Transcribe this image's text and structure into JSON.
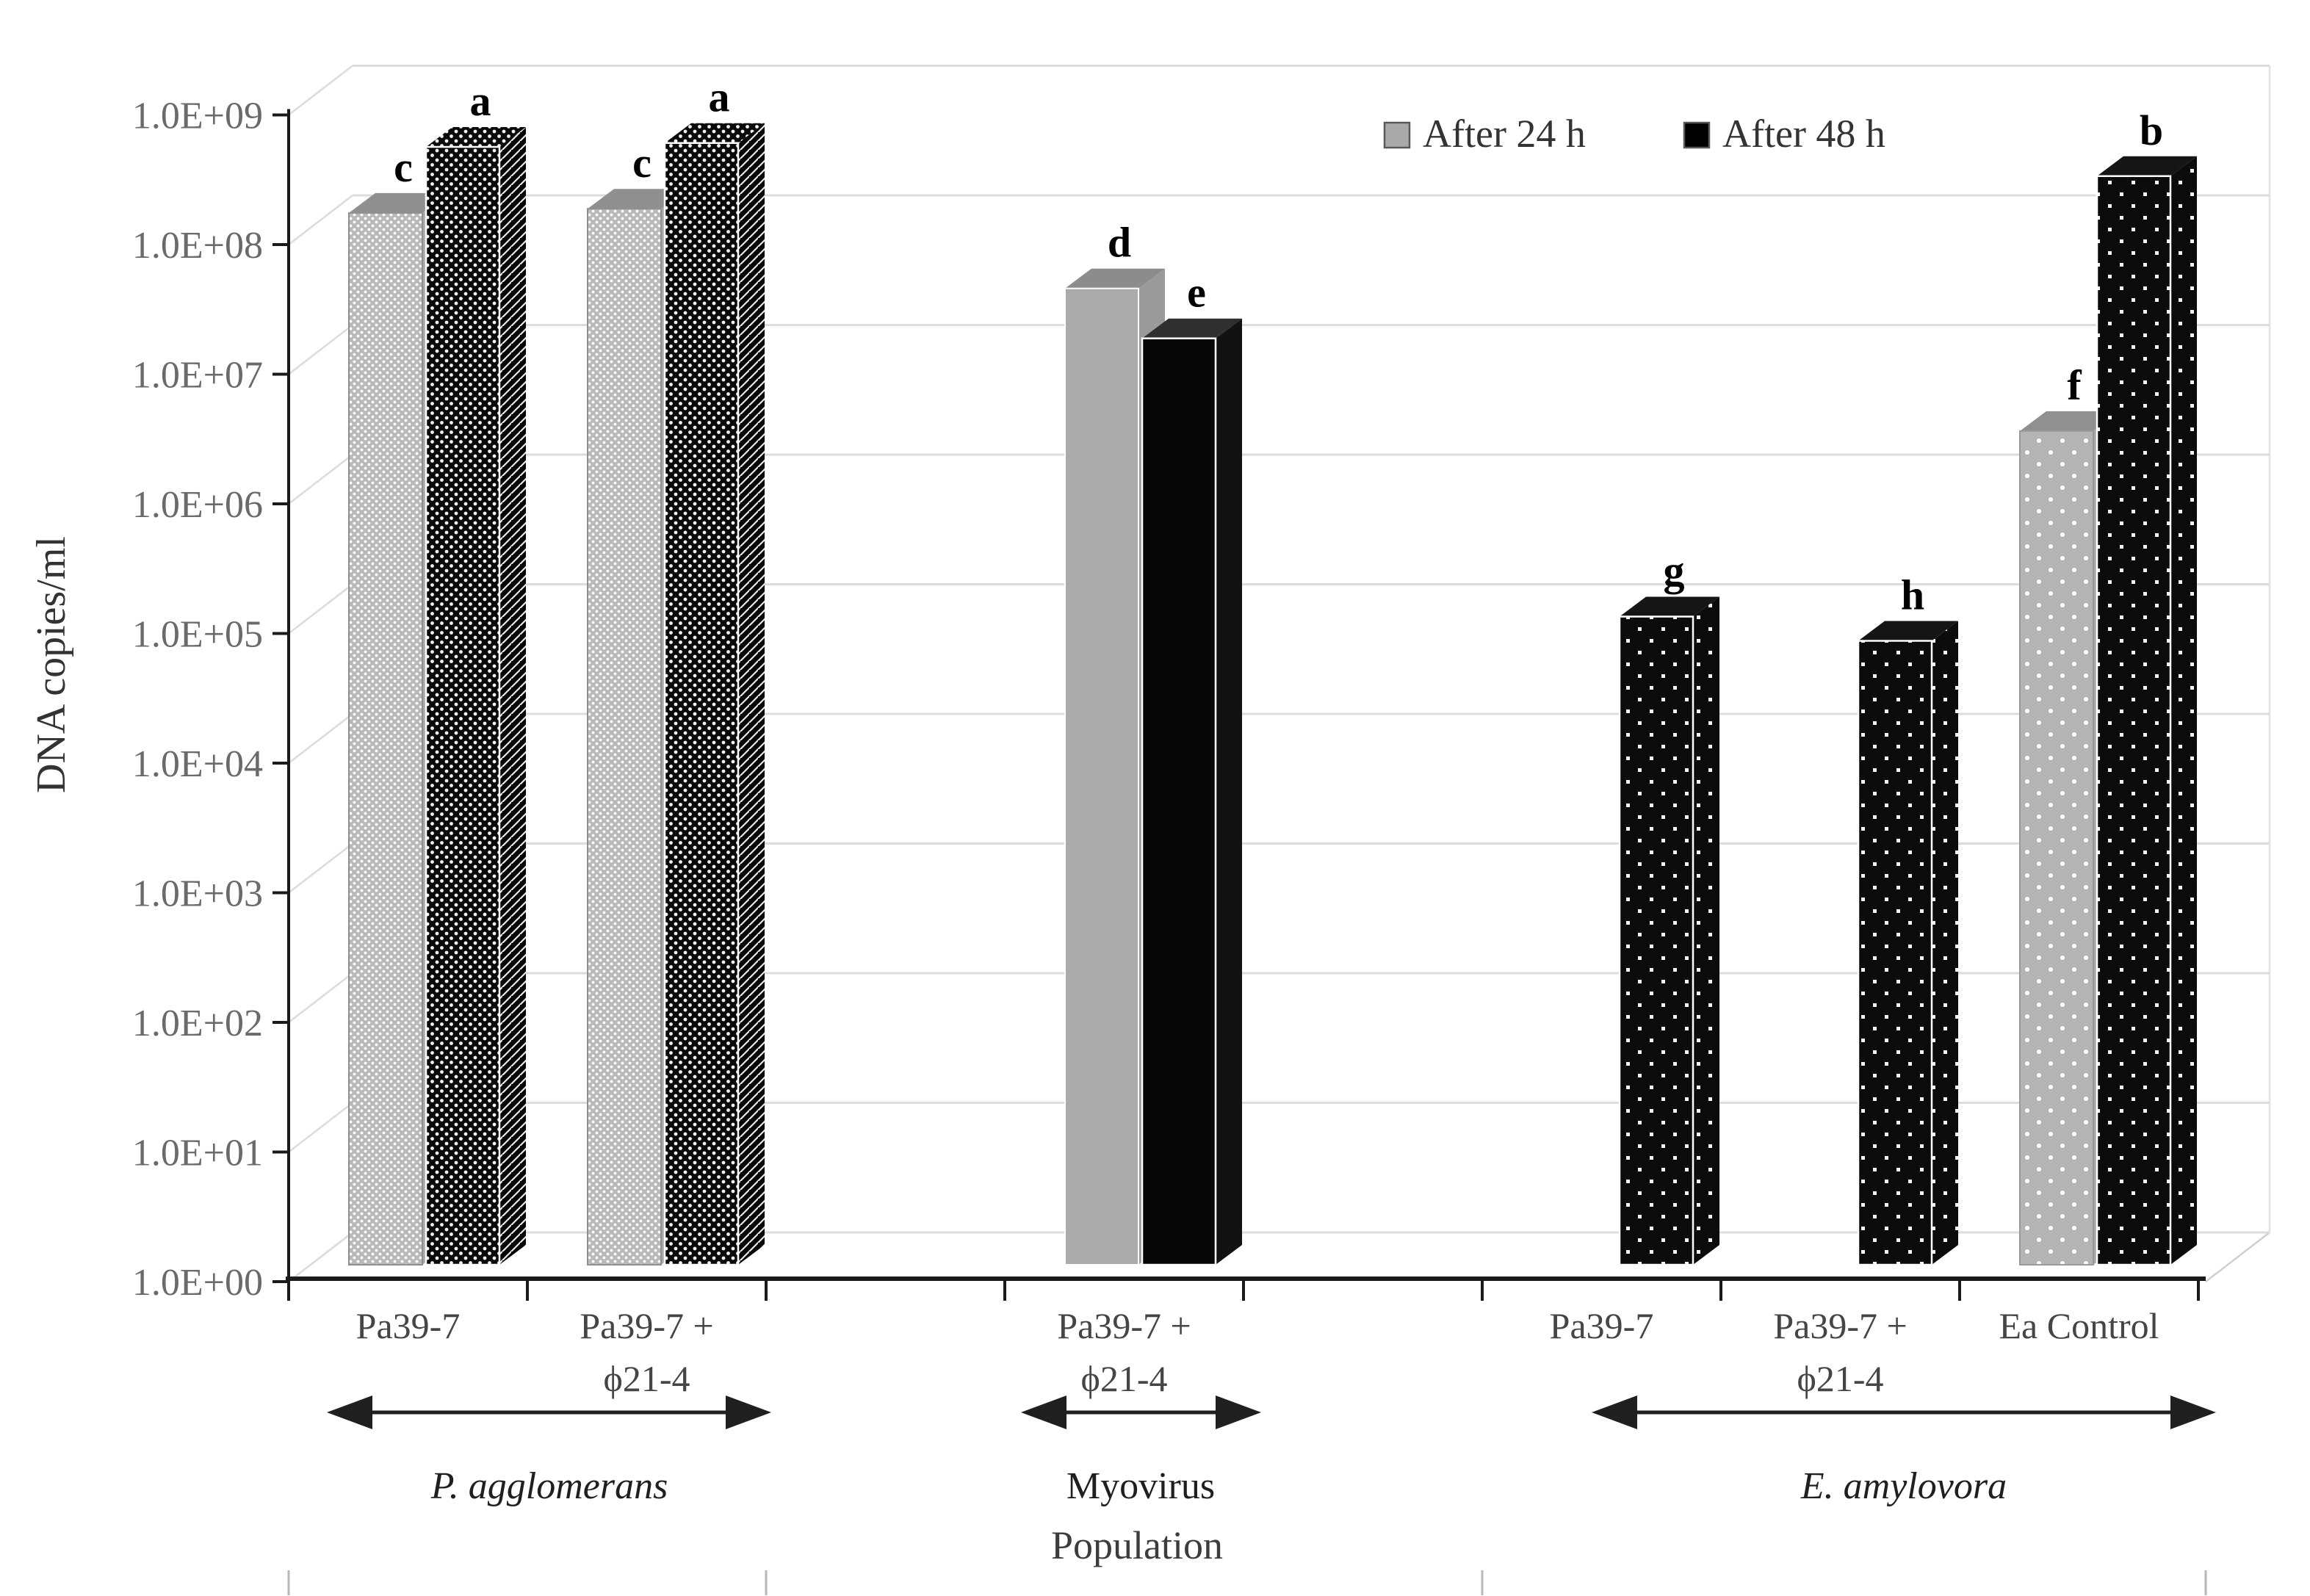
{
  "chart_data": {
    "type": "bar",
    "title": "",
    "ylabel": "DNA copies/ml",
    "xlabel": "Population",
    "y_scale": "log10",
    "ylim": [
      1,
      1000000000
    ],
    "y_ticks": [
      "1.0E+00",
      "1.0E+01",
      "1.0E+02",
      "1.0E+03",
      "1.0E+04",
      "1.0E+05",
      "1.0E+06",
      "1.0E+07",
      "1.0E+08",
      "1.0E+09"
    ],
    "grid": true,
    "legend_position": "top-right",
    "legend": [
      {
        "name": "After 24 h",
        "color": "#a9a9a9"
      },
      {
        "name": "After 48 h",
        "color": "#000000"
      }
    ],
    "categories": [
      {
        "slot": 0,
        "lines": [
          "Pa39-7"
        ]
      },
      {
        "slot": 1,
        "lines": [
          "Pa39-7 +",
          "ϕ21-4"
        ]
      },
      {
        "slot": 3,
        "lines": [
          "Pa39-7 +",
          "ϕ21-4"
        ]
      },
      {
        "slot": 5,
        "lines": [
          "Pa39-7"
        ]
      },
      {
        "slot": 6,
        "lines": [
          "Pa39-7 +",
          "ϕ21-4"
        ]
      },
      {
        "slot": 7,
        "lines": [
          "Ea Control"
        ]
      }
    ],
    "bars": [
      {
        "slot": 0,
        "series": 0,
        "value": 130000000.0,
        "letter": "c",
        "texture": "dense-gray"
      },
      {
        "slot": 0,
        "series": 1,
        "value": 420000000.0,
        "letter": "a",
        "texture": "dense-black"
      },
      {
        "slot": 1,
        "series": 0,
        "value": 140000000.0,
        "letter": "c",
        "texture": "dense-gray"
      },
      {
        "slot": 1,
        "series": 1,
        "value": 450000000.0,
        "letter": "a",
        "texture": "dense-black"
      },
      {
        "slot": 3,
        "series": 0,
        "value": 34000000.0,
        "letter": "d",
        "texture": "solid-gray"
      },
      {
        "slot": 3,
        "series": 1,
        "value": 14000000.0,
        "letter": "e",
        "texture": "solid-black"
      },
      {
        "slot": 5,
        "series": 1,
        "value": 100000.0,
        "letter": "g",
        "texture": "sparse-black"
      },
      {
        "slot": 6,
        "series": 1,
        "value": 65000.0,
        "letter": "h",
        "texture": "sparse-black"
      },
      {
        "slot": 7,
        "series": 0,
        "value": 2700000.0,
        "letter": "f",
        "texture": "sparse-gray"
      },
      {
        "slot": 7,
        "series": 1,
        "value": 250000000.0,
        "letter": "b",
        "texture": "sparse-black"
      }
    ],
    "groups": [
      {
        "label": "P. agglomerans",
        "italic": true,
        "arrow_x1": 445,
        "arrow_x2": 1050,
        "label_x": 748
      },
      {
        "label": "Myovirus",
        "italic": false,
        "arrow_x1": 1390,
        "arrow_x2": 1717,
        "label_x": 1553
      },
      {
        "label": "E. amylovora",
        "italic": true,
        "arrow_x1": 2167,
        "arrow_x2": 3017,
        "label_x": 2592
      }
    ]
  }
}
